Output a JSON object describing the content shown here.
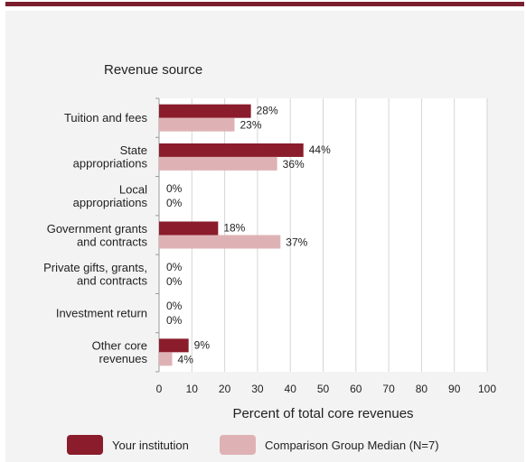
{
  "chart_data": {
    "type": "bar",
    "orientation": "horizontal",
    "title": "Revenue source",
    "xlabel": "Percent of total core revenues",
    "xlim": [
      0,
      100
    ],
    "xticks": [
      "0",
      "10",
      "20",
      "30",
      "40",
      "50",
      "60",
      "70",
      "80",
      "90",
      "100"
    ],
    "grid": "vertical",
    "legend_position": "bottom",
    "categories": [
      [
        "Tuition and fees"
      ],
      [
        "State",
        "appropriations"
      ],
      [
        "Local",
        "appropriations"
      ],
      [
        "Government grants",
        "and contracts"
      ],
      [
        "Private gifts, grants,",
        "and contracts"
      ],
      [
        "Investment return"
      ],
      [
        "Other core",
        "revenues"
      ]
    ],
    "series": [
      {
        "name": "Your institution",
        "color": "#8a1c2b",
        "values": [
          28,
          44,
          0,
          18,
          0,
          0,
          9
        ],
        "labels": [
          "28%",
          "44%",
          "0%",
          "18%",
          "0%",
          "0%",
          "9%"
        ]
      },
      {
        "name": "Comparison Group Median (N=7)",
        "color": "#deb2b5",
        "values": [
          23,
          36,
          0,
          37,
          0,
          0,
          4
        ],
        "labels": [
          "23%",
          "36%",
          "0%",
          "37%",
          "0%",
          "0%",
          "4%"
        ]
      }
    ]
  }
}
